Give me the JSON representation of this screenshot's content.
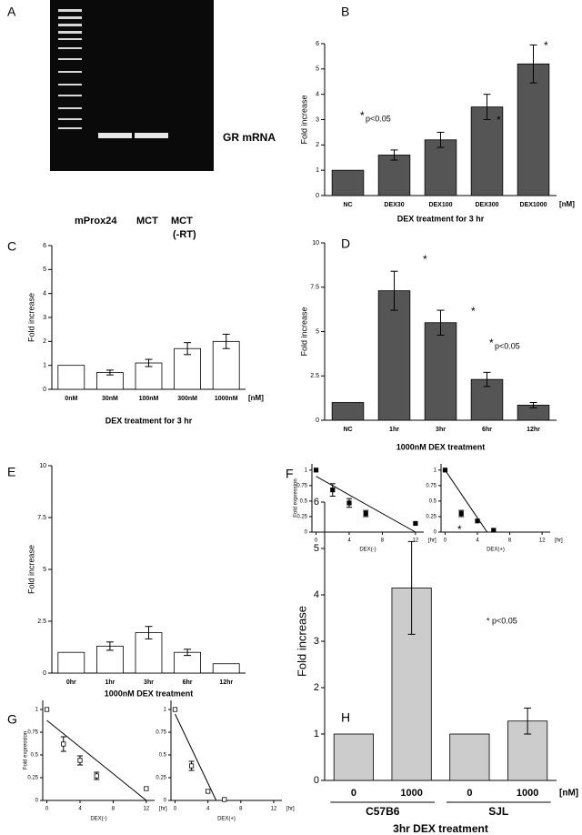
{
  "gel": {
    "panel": "A",
    "band_label": "GR mRNA",
    "lanes": [
      "mProx24",
      "MCT",
      "MCT"
    ],
    "lane_note": "(-RT)"
  },
  "chart_data": [
    {
      "type": "bar",
      "panel": "B",
      "categories": [
        "NC",
        "DEX30",
        "DEX100",
        "DEX300",
        "DEX1000"
      ],
      "values": [
        1,
        1.6,
        2.2,
        3.5,
        5.2
      ],
      "errors": [
        null,
        0.2,
        0.3,
        0.5,
        0.75
      ],
      "color": "#555555",
      "ylim": [
        0,
        6
      ],
      "yticks": [
        0,
        1,
        2,
        3,
        4,
        5,
        6
      ],
      "y_label": "Fold increase",
      "x_label": "DEX treatment for 3 hr",
      "unit": "[nM]",
      "annotations": [
        "*",
        "*",
        "*",
        "p<0.05"
      ]
    },
    {
      "type": "bar",
      "panel": "C",
      "categories": [
        "0nM",
        "30nM",
        "100nM",
        "300nM",
        "1000nM"
      ],
      "values": [
        1,
        0.7,
        1.1,
        1.7,
        2.0
      ],
      "errors": [
        null,
        0.1,
        0.15,
        0.25,
        0.3
      ],
      "color": "#ffffff",
      "ylim": [
        0,
        6
      ],
      "yticks": [
        0,
        1,
        2,
        3,
        4,
        5,
        6
      ],
      "y_label": "Fold increase",
      "x_label": "DEX treatment for 3 hr",
      "unit": "[nM]",
      "annotations": []
    },
    {
      "type": "bar",
      "panel": "D",
      "categories": [
        "NC",
        "1hr",
        "3hr",
        "6hr",
        "12hr"
      ],
      "values": [
        1,
        7.3,
        5.5,
        2.3,
        0.85
      ],
      "errors": [
        null,
        1.1,
        0.7,
        0.4,
        0.15
      ],
      "color": "#555555",
      "ylim": [
        0,
        10
      ],
      "yticks": [
        0,
        2.5,
        5,
        7.5,
        10
      ],
      "y_label": "Fold increase",
      "x_label": "1000nM DEX treatment",
      "annotations": [
        "*",
        "*",
        "*",
        "p<0.05"
      ]
    },
    {
      "type": "bar",
      "panel": "E",
      "categories": [
        "0hr",
        "1hr",
        "3hr",
        "6hr",
        "12hr"
      ],
      "values": [
        1,
        1.3,
        1.95,
        1.0,
        0.45
      ],
      "errors": [
        null,
        0.2,
        0.3,
        0.15,
        null
      ],
      "color": "#ffffff",
      "ylim": [
        0,
        10
      ],
      "yticks": [
        0,
        2.5,
        5,
        7.5,
        10
      ],
      "y_label": "Fold increase",
      "x_label": "1000nM DEX treatment",
      "annotations": []
    },
    {
      "type": "scatter",
      "panel": "F",
      "x": [
        0,
        2,
        4,
        6,
        12
      ],
      "values": [
        1,
        0.68,
        0.47,
        0.3,
        0.14
      ],
      "errors": [
        null,
        0.1,
        0.07,
        0.05,
        null
      ],
      "fit": {
        "x": [
          0,
          12
        ],
        "values": [
          0.9,
          0
        ]
      },
      "marker": "filled",
      "xlim": [
        -0.5,
        13
      ],
      "xticks": [
        0,
        4,
        8,
        12
      ],
      "ylim": [
        0,
        1.1
      ],
      "yticks": [
        0,
        0.25,
        0.5,
        0.75,
        1
      ],
      "y_label": "Fold expression",
      "x_label": "DEX(-)",
      "unit": "[hr]"
    },
    {
      "type": "scatter",
      "x": [
        0,
        2,
        4,
        6
      ],
      "values": [
        1,
        0.3,
        0.18,
        0.03
      ],
      "errors": [
        null,
        0.05,
        null,
        null
      ],
      "fit": {
        "x": [
          0,
          5.2
        ],
        "values": [
          1,
          0
        ]
      },
      "marker": "filled",
      "xlim": [
        -0.5,
        13
      ],
      "xticks": [
        0,
        4,
        8,
        12
      ],
      "ylim": [
        0,
        1.1
      ],
      "yticks": [
        0,
        0.25,
        0.5,
        0.75,
        1
      ],
      "x_label": "DEX(+)",
      "unit": "[hr]"
    },
    {
      "type": "scatter",
      "panel": "G",
      "x": [
        0,
        2,
        4,
        6,
        12
      ],
      "values": [
        1,
        0.62,
        0.44,
        0.27,
        0.13
      ],
      "errors": [
        null,
        0.08,
        0.05,
        0.04,
        null
      ],
      "fit": {
        "x": [
          0,
          12
        ],
        "values": [
          0.88,
          0
        ]
      },
      "marker": "open",
      "xlim": [
        -0.5,
        13
      ],
      "xticks": [
        0,
        4,
        8,
        12
      ],
      "ylim": [
        0,
        1.1
      ],
      "yticks": [
        0,
        0.25,
        0.5,
        0.75,
        1
      ],
      "y_label": "Fold expression",
      "x_label": "DEX(-)",
      "unit": "[hr]"
    },
    {
      "type": "scatter",
      "x": [
        0,
        2,
        4,
        6
      ],
      "values": [
        1,
        0.38,
        0.1,
        0.01
      ],
      "errors": [
        null,
        0.05,
        null,
        null
      ],
      "fit": {
        "x": [
          0,
          5
        ],
        "values": [
          0.95,
          0
        ]
      },
      "marker": "open",
      "xlim": [
        -0.5,
        13
      ],
      "xticks": [
        0,
        4,
        8,
        12
      ],
      "ylim": [
        0,
        1.1
      ],
      "yticks": [
        0,
        0.25,
        0.5,
        0.75,
        1
      ],
      "x_label": "DEX(+)",
      "unit": "[hr]"
    },
    {
      "type": "bar",
      "panel": "H",
      "categories": [
        "0",
        "1000",
        "0",
        "1000"
      ],
      "groups": [
        "C57B6",
        "SJL"
      ],
      "values": [
        1,
        4.15,
        1,
        1.28
      ],
      "errors": [
        null,
        1.0,
        null,
        0.28
      ],
      "color": "#cccccc",
      "ylim": [
        0,
        6
      ],
      "yticks": [
        0,
        1,
        2,
        3,
        4,
        5,
        6
      ],
      "y_label": "Fold increase",
      "x_label": "3hr DEX treatment",
      "unit": "[nM]",
      "annotations": [
        "*",
        "* p<0.05"
      ]
    }
  ]
}
